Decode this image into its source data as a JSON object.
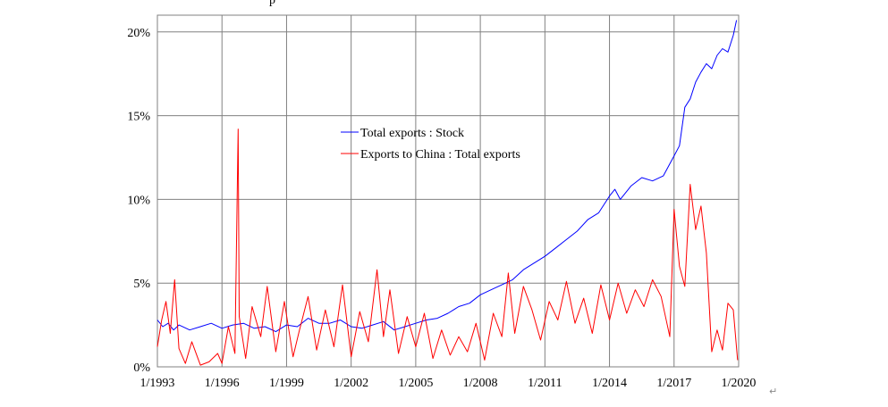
{
  "header": {
    "cropped_title_fragment": "p"
  },
  "footer": {
    "return_mark": "↵"
  },
  "chart_data": {
    "type": "line",
    "title": "",
    "xlabel": "",
    "ylabel": "",
    "xlim": [
      1993.0,
      2020.0
    ],
    "ylim": [
      0,
      21
    ],
    "x_ticks": [
      {
        "value": 1993,
        "label": "1/1993"
      },
      {
        "value": 1996,
        "label": "1/1996"
      },
      {
        "value": 1999,
        "label": "1/1999"
      },
      {
        "value": 2002,
        "label": "1/2002"
      },
      {
        "value": 2005,
        "label": "1/2005"
      },
      {
        "value": 2008,
        "label": "1/2008"
      },
      {
        "value": 2011,
        "label": "1/2011"
      },
      {
        "value": 2014,
        "label": "1/2014"
      },
      {
        "value": 2017,
        "label": "1/2017"
      },
      {
        "value": 2020,
        "label": "1/2020"
      }
    ],
    "y_ticks": [
      {
        "value": 0,
        "label": "0%"
      },
      {
        "value": 5,
        "label": "5%"
      },
      {
        "value": 10,
        "label": "10%"
      },
      {
        "value": 15,
        "label": "15%"
      },
      {
        "value": 20,
        "label": "20%"
      }
    ],
    "grid": true,
    "legend_position": "center",
    "series": [
      {
        "name": "Total exports : Stock",
        "color": "#0000ff",
        "x": [
          1993.0,
          1993.25,
          1993.5,
          1993.75,
          1994.0,
          1994.5,
          1995.0,
          1995.5,
          1996.0,
          1996.5,
          1997.0,
          1997.5,
          1998.0,
          1998.5,
          1999.0,
          1999.5,
          2000.0,
          2000.5,
          2001.0,
          2001.5,
          2002.0,
          2002.5,
          2003.0,
          2003.5,
          2004.0,
          2004.5,
          2005.0,
          2005.5,
          2006.0,
          2006.5,
          2007.0,
          2007.5,
          2008.0,
          2008.5,
          2009.0,
          2009.5,
          2010.0,
          2010.5,
          2011.0,
          2011.5,
          2012.0,
          2012.5,
          2013.0,
          2013.5,
          2014.0,
          2014.25,
          2014.5,
          2015.0,
          2015.5,
          2016.0,
          2016.5,
          2017.0,
          2017.25,
          2017.5,
          2017.75,
          2018.0,
          2018.25,
          2018.5,
          2018.75,
          2019.0,
          2019.25,
          2019.5,
          2019.75,
          2019.9
        ],
        "values": [
          2.8,
          2.4,
          2.6,
          2.2,
          2.5,
          2.2,
          2.4,
          2.6,
          2.3,
          2.5,
          2.6,
          2.3,
          2.4,
          2.1,
          2.5,
          2.4,
          2.9,
          2.6,
          2.6,
          2.8,
          2.4,
          2.3,
          2.5,
          2.7,
          2.2,
          2.4,
          2.6,
          2.8,
          2.9,
          3.2,
          3.6,
          3.8,
          4.3,
          4.6,
          4.9,
          5.2,
          5.8,
          6.2,
          6.6,
          7.1,
          7.6,
          8.1,
          8.8,
          9.2,
          10.2,
          10.6,
          10.0,
          10.8,
          11.3,
          11.1,
          11.4,
          12.6,
          13.2,
          15.5,
          16.0,
          17.0,
          17.6,
          18.1,
          17.8,
          18.6,
          19.0,
          18.8,
          19.8,
          20.7
        ]
      },
      {
        "name": "Exports to China : Total exports",
        "color": "#ff0000",
        "x": [
          1993.0,
          1993.2,
          1993.4,
          1993.6,
          1993.8,
          1994.0,
          1994.3,
          1994.6,
          1995.0,
          1995.4,
          1995.8,
          1996.0,
          1996.3,
          1996.6,
          1996.75,
          1996.8,
          1997.1,
          1997.4,
          1997.8,
          1998.1,
          1998.5,
          1998.9,
          1999.3,
          1999.6,
          2000.0,
          2000.4,
          2000.8,
          2001.2,
          2001.6,
          2002.0,
          2002.4,
          2002.8,
          2003.2,
          2003.5,
          2003.8,
          2004.2,
          2004.6,
          2005.0,
          2005.4,
          2005.8,
          2006.2,
          2006.6,
          2007.0,
          2007.4,
          2007.8,
          2008.2,
          2008.6,
          2009.0,
          2009.3,
          2009.6,
          2010.0,
          2010.4,
          2010.8,
          2011.2,
          2011.6,
          2012.0,
          2012.4,
          2012.8,
          2013.2,
          2013.6,
          2014.0,
          2014.4,
          2014.8,
          2015.2,
          2015.6,
          2016.0,
          2016.4,
          2016.8,
          2017.0,
          2017.25,
          2017.5,
          2017.75,
          2018.0,
          2018.25,
          2018.5,
          2018.75,
          2019.0,
          2019.25,
          2019.5,
          2019.75,
          2019.95
        ],
        "values": [
          1.2,
          2.8,
          3.9,
          2.0,
          5.2,
          1.1,
          0.2,
          1.5,
          0.1,
          0.3,
          0.8,
          0.2,
          2.4,
          0.8,
          14.2,
          3.0,
          0.5,
          3.6,
          1.8,
          4.8,
          0.9,
          3.9,
          0.6,
          2.2,
          4.2,
          1.0,
          3.4,
          1.2,
          4.9,
          0.6,
          3.3,
          1.5,
          5.8,
          1.8,
          4.6,
          0.8,
          3.0,
          1.2,
          3.2,
          0.5,
          2.2,
          0.7,
          1.8,
          0.9,
          2.6,
          0.4,
          3.2,
          1.8,
          5.6,
          2.0,
          4.8,
          3.4,
          1.6,
          3.9,
          2.8,
          5.1,
          2.6,
          4.1,
          2.0,
          4.9,
          2.8,
          5.0,
          3.2,
          4.6,
          3.6,
          5.2,
          4.2,
          1.8,
          9.4,
          6.0,
          4.8,
          10.9,
          8.2,
          9.6,
          6.8,
          0.9,
          2.2,
          1.0,
          3.8,
          3.4,
          0.4
        ]
      }
    ]
  }
}
